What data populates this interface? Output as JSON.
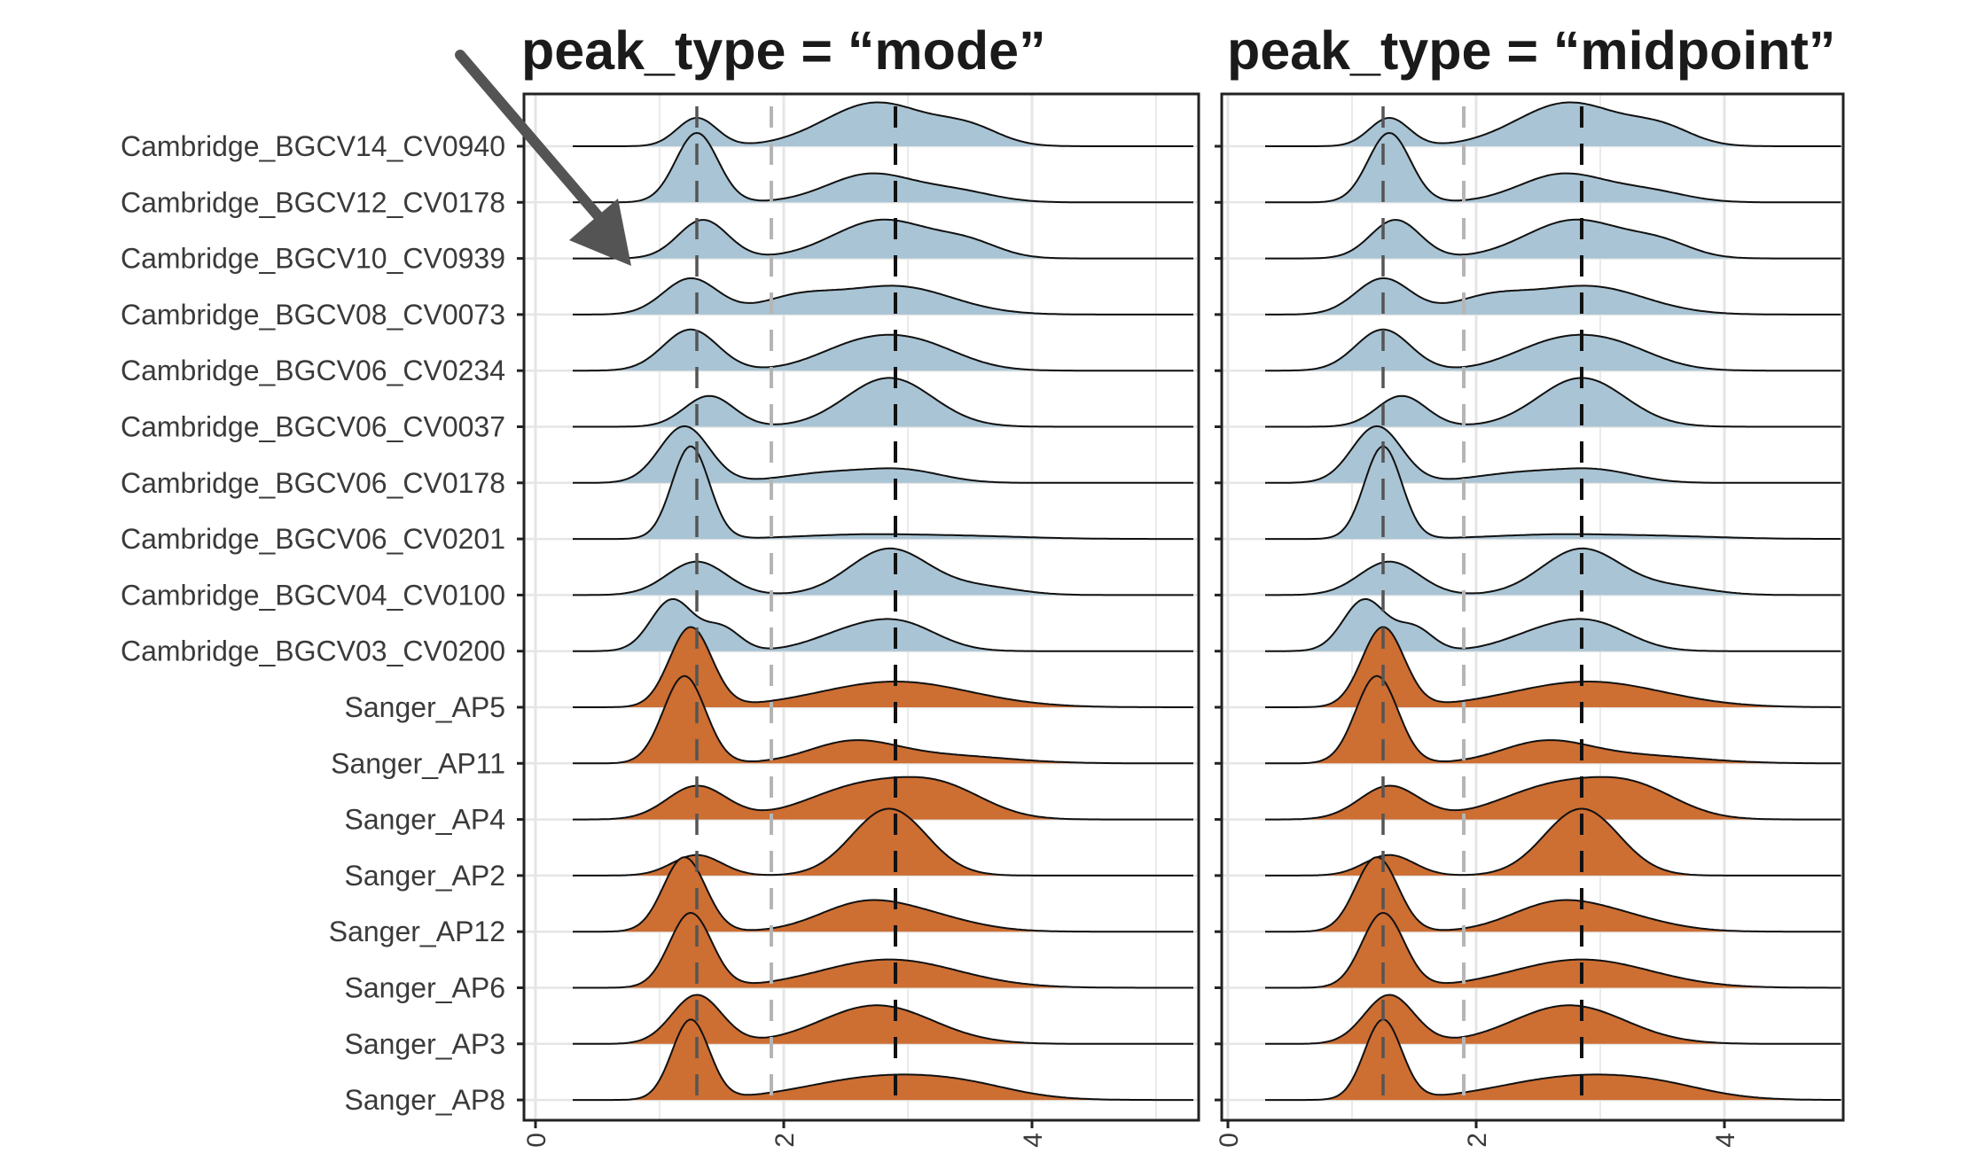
{
  "chart_data": {
    "type": "ridgeline",
    "panels": [
      {
        "title": "peak_type = “mode”",
        "peak_lines": {
          "first_peak": 1.3,
          "separator": 1.9,
          "second_peak": 2.9
        }
      },
      {
        "title": "peak_type = “midpoint”",
        "peak_lines": {
          "first_peak": 1.25,
          "separator": 1.9,
          "second_peak": 2.85
        }
      }
    ],
    "xlim": [
      0,
      5.4
    ],
    "x_ticks": [
      0,
      2,
      4
    ],
    "x_tick_labels": [
      "0",
      "2",
      "4"
    ],
    "grid": true,
    "rows": [
      {
        "label": "Cambridge_BGCV14_CV0940",
        "group": "Cambridge",
        "peaks": [
          [
            1.3,
            0.16,
            0.55
          ],
          [
            2.75,
            0.42,
            0.85
          ],
          [
            3.5,
            0.25,
            0.3
          ]
        ]
      },
      {
        "label": "Cambridge_BGCV12_CV0178",
        "group": "Cambridge",
        "peaks": [
          [
            1.3,
            0.17,
            1.35
          ],
          [
            2.7,
            0.35,
            0.55
          ],
          [
            3.4,
            0.3,
            0.2
          ]
        ]
      },
      {
        "label": "Cambridge_BGCV10_CV0939",
        "group": "Cambridge",
        "peaks": [
          [
            1.35,
            0.2,
            0.75
          ],
          [
            2.8,
            0.4,
            0.75
          ],
          [
            3.5,
            0.25,
            0.25
          ]
        ]
      },
      {
        "label": "Cambridge_BGCV08_CV0073",
        "group": "Cambridge",
        "peaks": [
          [
            1.25,
            0.22,
            0.7
          ],
          [
            2.1,
            0.3,
            0.3
          ],
          [
            2.9,
            0.45,
            0.55
          ]
        ]
      },
      {
        "label": "Cambridge_BGCV06_CV0234",
        "group": "Cambridge",
        "peaks": [
          [
            1.25,
            0.22,
            0.8
          ],
          [
            2.6,
            0.35,
            0.45
          ],
          [
            3.1,
            0.35,
            0.45
          ]
        ]
      },
      {
        "label": "Cambridge_BGCV06_CV0037",
        "group": "Cambridge",
        "peaks": [
          [
            1.4,
            0.2,
            0.6
          ],
          [
            2.85,
            0.35,
            0.95
          ]
        ]
      },
      {
        "label": "Cambridge_BGCV06_CV0178",
        "group": "Cambridge",
        "peaks": [
          [
            1.2,
            0.2,
            1.1
          ],
          [
            2.4,
            0.4,
            0.2
          ],
          [
            3.0,
            0.3,
            0.2
          ]
        ]
      },
      {
        "label": "Cambridge_BGCV06_CV0201",
        "group": "Cambridge",
        "peaks": [
          [
            1.25,
            0.15,
            1.8
          ],
          [
            2.6,
            0.5,
            0.08
          ],
          [
            3.5,
            0.5,
            0.05
          ]
        ]
      },
      {
        "label": "Cambridge_BGCV04_CV0100",
        "group": "Cambridge",
        "peaks": [
          [
            1.3,
            0.24,
            0.65
          ],
          [
            2.85,
            0.32,
            0.9
          ],
          [
            3.6,
            0.3,
            0.15
          ]
        ]
      },
      {
        "label": "Cambridge_BGCV03_CV0200",
        "group": "Cambridge",
        "peaks": [
          [
            1.1,
            0.17,
            1.0
          ],
          [
            1.5,
            0.15,
            0.45
          ],
          [
            2.5,
            0.3,
            0.3
          ],
          [
            2.95,
            0.3,
            0.5
          ]
        ]
      },
      {
        "label": "Sanger_AP5",
        "group": "Sanger",
        "peaks": [
          [
            1.25,
            0.17,
            1.55
          ],
          [
            2.9,
            0.6,
            0.5
          ]
        ]
      },
      {
        "label": "Sanger_AP11",
        "group": "Sanger",
        "peaks": [
          [
            1.2,
            0.17,
            1.7
          ],
          [
            2.55,
            0.35,
            0.4
          ],
          [
            3.3,
            0.5,
            0.15
          ]
        ]
      },
      {
        "label": "Sanger_AP4",
        "group": "Sanger",
        "peaks": [
          [
            1.3,
            0.24,
            0.65
          ],
          [
            2.65,
            0.45,
            0.65
          ],
          [
            3.3,
            0.35,
            0.5
          ]
        ]
      },
      {
        "label": "Sanger_AP2",
        "group": "Sanger",
        "peaks": [
          [
            1.3,
            0.2,
            0.4
          ],
          [
            2.85,
            0.3,
            1.3
          ]
        ]
      },
      {
        "label": "Sanger_AP12",
        "group": "Sanger",
        "peaks": [
          [
            1.2,
            0.17,
            1.45
          ],
          [
            2.6,
            0.35,
            0.45
          ],
          [
            3.1,
            0.4,
            0.3
          ]
        ]
      },
      {
        "label": "Sanger_AP6",
        "group": "Sanger",
        "peaks": [
          [
            1.25,
            0.17,
            1.45
          ],
          [
            2.85,
            0.55,
            0.55
          ]
        ]
      },
      {
        "label": "Sanger_AP3",
        "group": "Sanger",
        "peaks": [
          [
            1.3,
            0.2,
            0.95
          ],
          [
            2.75,
            0.45,
            0.75
          ]
        ]
      },
      {
        "label": "Sanger_AP8",
        "group": "Sanger",
        "peaks": [
          [
            1.25,
            0.15,
            1.55
          ],
          [
            2.8,
            0.6,
            0.45
          ],
          [
            3.5,
            0.4,
            0.15
          ]
        ]
      }
    ]
  },
  "colors": {
    "Cambridge": "#a9c4d4",
    "Sanger": "#cd6e33",
    "outline": "#111111",
    "first_peak_line": "#555555",
    "separator_line": "#b5b5b5",
    "second_peak_line": "#111111",
    "arrow": "#545454",
    "grid": "#e5e5e5"
  },
  "annotations": {
    "arrow_target_row": "Cambridge_BGCV10_CV0939"
  }
}
